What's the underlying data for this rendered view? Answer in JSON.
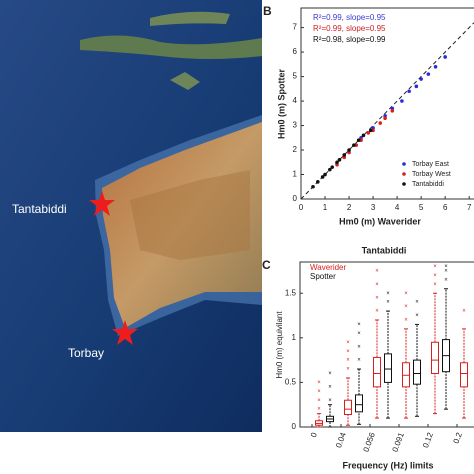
{
  "map": {
    "labels": [
      "Tantabiddi",
      "Torbay"
    ]
  },
  "chart_data": [
    {
      "type": "scatter",
      "panel": "B",
      "xlabel": "Hm0 (m) Waverider",
      "ylabel": "Hm0 (m) Spotter",
      "xlim": [
        0,
        7.2
      ],
      "ylim": [
        0,
        7.8
      ],
      "xticks": [
        0,
        1,
        2,
        3,
        4,
        5,
        6,
        7
      ],
      "yticks": [
        0,
        1,
        2,
        3,
        4,
        5,
        6,
        7
      ],
      "annotations": [
        {
          "text": "R²=0.99, slope=0.95",
          "color": "#3a3ad0"
        },
        {
          "text": "R²=0.99, slope=0.95",
          "color": "#d02020"
        },
        {
          "text": "R²=0.98, slope=0.99",
          "color": "#111111"
        }
      ],
      "series": [
        {
          "name": "Torbay East",
          "color": "#2a2ae0",
          "x": [
            2.5,
            3.0,
            3.5,
            3.8,
            4.2,
            4.5,
            4.8,
            5.0,
            5.3,
            5.6,
            6.0
          ],
          "y": [
            2.5,
            2.9,
            3.4,
            3.7,
            4.0,
            4.4,
            4.6,
            4.9,
            5.1,
            5.4,
            5.8
          ]
        },
        {
          "name": "Torbay West",
          "color": "#d82020",
          "x": [
            1.5,
            1.8,
            2.0,
            2.3,
            2.5,
            2.8,
            3.0,
            3.3,
            3.5,
            3.8
          ],
          "y": [
            1.4,
            1.7,
            1.9,
            2.2,
            2.4,
            2.7,
            2.8,
            3.1,
            3.3,
            3.6
          ]
        },
        {
          "name": "Tantabiddi",
          "color": "#111111",
          "x": [
            0.5,
            0.7,
            0.9,
            1.0,
            1.2,
            1.3,
            1.5,
            1.6,
            1.8,
            2.0,
            2.2,
            2.4,
            2.6,
            2.9
          ],
          "y": [
            0.5,
            0.7,
            0.9,
            1.0,
            1.2,
            1.3,
            1.5,
            1.6,
            1.8,
            2.0,
            2.2,
            2.4,
            2.6,
            2.8
          ]
        }
      ]
    },
    {
      "type": "box",
      "panel": "C",
      "title": "Tantabiddi",
      "xlabel": "Frequency (Hz) limits",
      "ylabel": "Hm0 (m) equivilant",
      "ylim": [
        0,
        1.85
      ],
      "yticks": [
        0,
        0.5,
        1,
        1.5
      ],
      "xticks": [
        0,
        0.04,
        0.056,
        0.091,
        0.12,
        0.2
      ],
      "series": [
        {
          "name": "Waverider",
          "color": "#d82020",
          "boxes": [
            {
              "min": 0,
              "q1": 0.02,
              "median": 0.04,
              "q3": 0.07,
              "max": 0.15,
              "outliers": [
                0.2,
                0.3,
                0.4,
                0.5
              ]
            },
            {
              "min": 0.02,
              "q1": 0.14,
              "median": 0.2,
              "q3": 0.3,
              "max": 0.55,
              "outliers": [
                0.65,
                0.75,
                0.85,
                0.95
              ]
            },
            {
              "min": 0.1,
              "q1": 0.45,
              "median": 0.6,
              "q3": 0.78,
              "max": 1.2,
              "outliers": [
                1.3,
                1.45,
                1.6,
                1.75
              ]
            },
            {
              "min": 0.1,
              "q1": 0.45,
              "median": 0.58,
              "q3": 0.72,
              "max": 1.1,
              "outliers": [
                1.2,
                1.35,
                1.5
              ]
            },
            {
              "min": 0.15,
              "q1": 0.6,
              "median": 0.75,
              "q3": 0.95,
              "max": 1.5,
              "outliers": [
                1.6,
                1.7,
                1.8
              ]
            },
            {
              "min": 0.1,
              "q1": 0.45,
              "median": 0.6,
              "q3": 0.72,
              "max": 1.1,
              "outliers": [
                1.3
              ]
            }
          ]
        },
        {
          "name": "Spotter",
          "color": "#111111",
          "boxes": [
            {
              "min": 0,
              "q1": 0.06,
              "median": 0.09,
              "q3": 0.12,
              "max": 0.25,
              "outliers": [
                0.3,
                0.45,
                0.6
              ]
            },
            {
              "min": 0.03,
              "q1": 0.17,
              "median": 0.25,
              "q3": 0.36,
              "max": 0.65,
              "outliers": [
                0.75,
                0.9,
                1.05,
                1.15
              ]
            },
            {
              "min": 0.1,
              "q1": 0.5,
              "median": 0.65,
              "q3": 0.82,
              "max": 1.3,
              "outliers": [
                1.4,
                1.5
              ]
            },
            {
              "min": 0.12,
              "q1": 0.48,
              "median": 0.6,
              "q3": 0.75,
              "max": 1.15,
              "outliers": [
                1.25,
                1.4
              ]
            },
            {
              "min": 0.2,
              "q1": 0.62,
              "median": 0.8,
              "q3": 0.98,
              "max": 1.55,
              "outliers": [
                1.65,
                1.75,
                1.8
              ]
            },
            null
          ]
        }
      ]
    }
  ]
}
